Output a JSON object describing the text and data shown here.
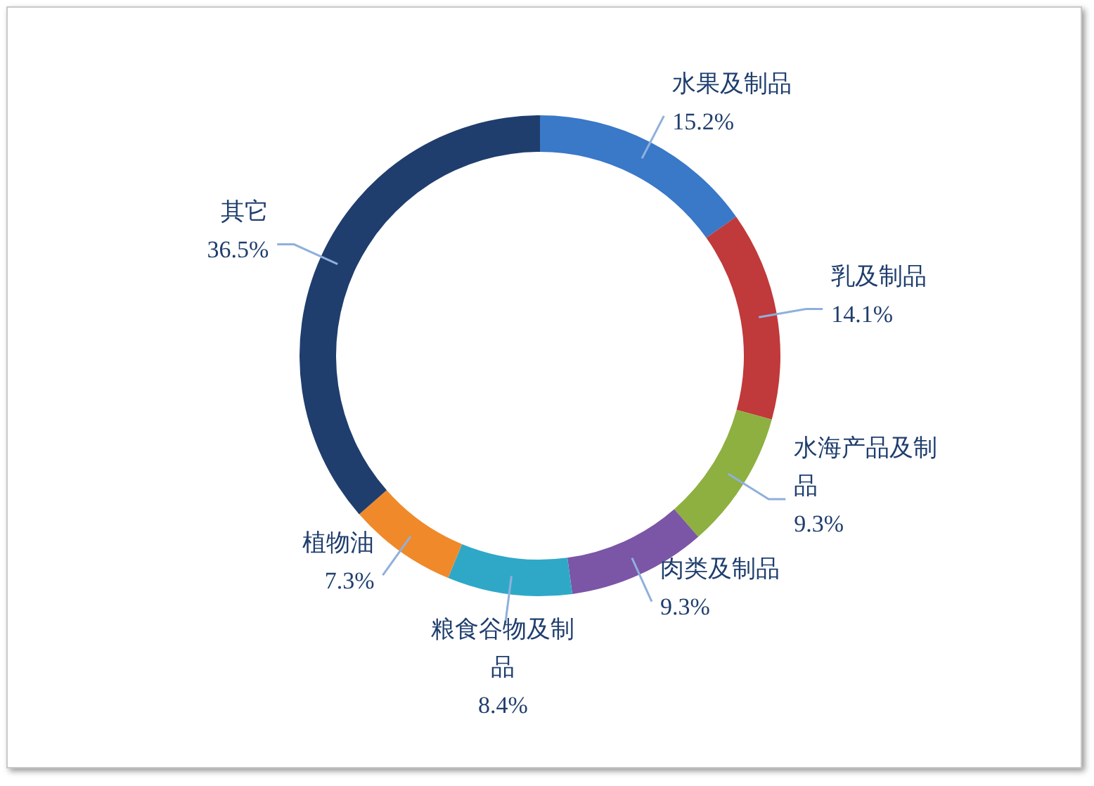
{
  "chart_data": {
    "type": "donut",
    "categories": [
      "水果及制品",
      "乳及制品",
      "水海产品及制品",
      "肉类及制品",
      "粮食谷物及制品",
      "植物油",
      "其它"
    ],
    "values": [
      15.2,
      14.1,
      9.3,
      9.3,
      8.4,
      7.3,
      36.5
    ],
    "colors": [
      "#3a78c8",
      "#c0393b",
      "#8db040",
      "#7b55a6",
      "#2fa8c8",
      "#f0892a",
      "#1f3e6e"
    ],
    "value_labels": [
      "15.2%",
      "14.1%",
      "9.3%",
      "9.3%",
      "8.4%",
      "7.3%",
      "36.5%"
    ]
  }
}
